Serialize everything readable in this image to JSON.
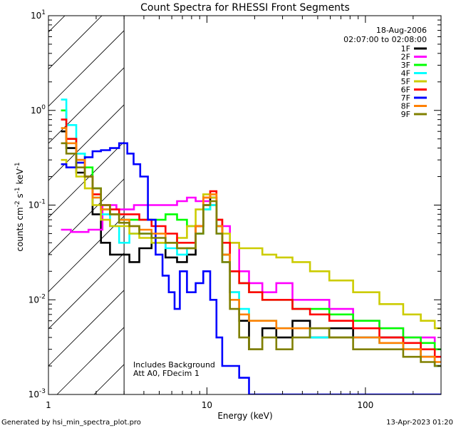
{
  "chart_data": {
    "type": "line",
    "title": "Count Spectra for RHESSI Front Segments",
    "xlabel": "Energy (keV)",
    "ylabel_main": "counts cm",
    "ylabel_exp1": "-2",
    "ylabel_mid1": " s",
    "ylabel_exp2": "-1",
    "ylabel_mid2": " keV",
    "ylabel_exp3": "-1",
    "x_scale": "log",
    "y_scale": "log",
    "xlim": [
      1,
      300
    ],
    "ylim": [
      0.001,
      10
    ],
    "x_ticks": [
      {
        "v": 1,
        "label": "1"
      },
      {
        "v": 10,
        "label": "10"
      },
      {
        "v": 100,
        "label": "100"
      }
    ],
    "y_ticks": [
      {
        "v": 0.001,
        "base": "10",
        "exp": "-3"
      },
      {
        "v": 0.01,
        "base": "10",
        "exp": "-2"
      },
      {
        "v": 0.1,
        "base": "10",
        "exp": "-1"
      },
      {
        "v": 1,
        "base": "10",
        "exp": "0"
      },
      {
        "v": 10,
        "base": "10",
        "exp": "1"
      }
    ],
    "hatched_region": {
      "x0": 1,
      "x1": 3
    },
    "date": "18-Aug-2006",
    "time_range": "02:07:00 to 02:08:00",
    "annotation_lines": [
      "Includes Background",
      "Att A0, FDecim 1"
    ],
    "footer_left": "Generated by hsi_min_spectra_plot.pro",
    "footer_right": "13-Apr-2023 01:20",
    "series": [
      {
        "name": "1F",
        "color": "#000000",
        "x": [
          1.2,
          1.4,
          1.6,
          1.8,
          2.0,
          2.3,
          2.6,
          3.0,
          3.5,
          4,
          5,
          6,
          7,
          8,
          9,
          10,
          11,
          12,
          13,
          15,
          17,
          20,
          25,
          30,
          40,
          50,
          70,
          100,
          150,
          200,
          250,
          300
        ],
        "y": [
          0.6,
          0.4,
          0.22,
          0.2,
          0.08,
          0.04,
          0.03,
          0.03,
          0.025,
          0.035,
          0.04,
          0.028,
          0.025,
          0.03,
          0.06,
          0.1,
          0.12,
          0.06,
          0.03,
          0.012,
          0.006,
          0.003,
          0.005,
          0.004,
          0.006,
          0.004,
          0.005,
          0.004,
          0.004,
          0.003,
          0.0025,
          0.002
        ]
      },
      {
        "name": "2F",
        "color": "#ff00ff",
        "x": [
          1.2,
          1.6,
          2.0,
          2.4,
          3.0,
          4,
          5,
          6,
          7,
          8,
          9,
          10,
          11,
          12,
          13,
          15,
          17,
          20,
          25,
          30,
          40,
          50,
          70,
          100,
          150,
          200,
          250,
          300
        ],
        "y": [
          0.055,
          0.052,
          0.055,
          0.1,
          0.09,
          0.1,
          0.1,
          0.1,
          0.11,
          0.12,
          0.11,
          0.11,
          0.1,
          0.07,
          0.06,
          0.04,
          0.02,
          0.015,
          0.012,
          0.015,
          0.01,
          0.01,
          0.008,
          0.006,
          0.005,
          0.004,
          0.004,
          0.003
        ]
      },
      {
        "name": "3F",
        "color": "#00ff00",
        "x": [
          1.2,
          1.4,
          1.6,
          1.8,
          2.0,
          2.3,
          2.6,
          3.0,
          3.5,
          4,
          5,
          6,
          7,
          8,
          9,
          10,
          11,
          12,
          13,
          15,
          17,
          20,
          25,
          30,
          40,
          50,
          70,
          100,
          150,
          200,
          250,
          300
        ],
        "y": [
          1.0,
          0.5,
          0.35,
          0.25,
          0.15,
          0.09,
          0.08,
          0.07,
          0.07,
          0.07,
          0.07,
          0.08,
          0.07,
          0.06,
          0.05,
          0.09,
          0.1,
          0.06,
          0.03,
          0.02,
          0.015,
          0.012,
          0.01,
          0.01,
          0.008,
          0.008,
          0.007,
          0.006,
          0.005,
          0.004,
          0.0035,
          0.003
        ]
      },
      {
        "name": "4F",
        "color": "#00ffff",
        "x": [
          1.2,
          1.4,
          1.6,
          1.8,
          2.0,
          2.3,
          2.6,
          3.0,
          3.5,
          4,
          5,
          6,
          7,
          8,
          9,
          10,
          11,
          12,
          13,
          15,
          17,
          20,
          25,
          30,
          40,
          50,
          70,
          100,
          150,
          200,
          250,
          300
        ],
        "y": [
          1.3,
          0.7,
          0.35,
          0.2,
          0.12,
          0.08,
          0.06,
          0.04,
          0.05,
          0.05,
          0.04,
          0.035,
          0.03,
          0.035,
          0.05,
          0.09,
          0.1,
          0.05,
          0.025,
          0.012,
          0.008,
          0.006,
          0.006,
          0.005,
          0.005,
          0.004,
          0.004,
          0.004,
          0.0035,
          0.003,
          0.0025,
          0.002
        ]
      },
      {
        "name": "5F",
        "color": "#cccc00",
        "x": [
          1.2,
          1.4,
          1.6,
          1.8,
          2.0,
          2.3,
          2.6,
          3.0,
          3.5,
          4,
          5,
          6,
          7,
          8,
          9,
          10,
          11,
          12,
          13,
          15,
          17,
          20,
          25,
          30,
          40,
          50,
          70,
          100,
          150,
          200,
          250,
          300
        ],
        "y": [
          0.3,
          0.25,
          0.2,
          0.15,
          0.1,
          0.07,
          0.06,
          0.06,
          0.05,
          0.045,
          0.04,
          0.04,
          0.045,
          0.06,
          0.09,
          0.13,
          0.12,
          0.07,
          0.05,
          0.04,
          0.035,
          0.035,
          0.03,
          0.028,
          0.025,
          0.02,
          0.016,
          0.012,
          0.009,
          0.007,
          0.006,
          0.005
        ]
      },
      {
        "name": "6F",
        "color": "#ff0000",
        "x": [
          1.2,
          1.4,
          1.6,
          1.8,
          2.0,
          2.3,
          2.6,
          3.0,
          3.5,
          4,
          5,
          6,
          7,
          8,
          9,
          10,
          11,
          12,
          13,
          15,
          17,
          20,
          25,
          30,
          40,
          50,
          70,
          100,
          150,
          200,
          250,
          300
        ],
        "y": [
          0.8,
          0.5,
          0.3,
          0.2,
          0.13,
          0.1,
          0.09,
          0.08,
          0.08,
          0.07,
          0.06,
          0.05,
          0.04,
          0.04,
          0.06,
          0.12,
          0.14,
          0.07,
          0.04,
          0.02,
          0.015,
          0.012,
          0.01,
          0.01,
          0.008,
          0.007,
          0.006,
          0.005,
          0.004,
          0.0035,
          0.003,
          0.0025
        ]
      },
      {
        "name": "7F",
        "color": "#0000ff",
        "x": [
          1.2,
          1.4,
          1.6,
          1.8,
          2.0,
          2.3,
          2.6,
          3.0,
          3.3,
          3.6,
          4,
          4.5,
          5,
          5.5,
          6,
          6.5,
          7,
          8,
          9,
          10,
          11,
          12,
          13,
          15,
          17,
          20
        ],
        "y": [
          0.27,
          0.25,
          0.28,
          0.32,
          0.37,
          0.38,
          0.4,
          0.45,
          0.35,
          0.27,
          0.2,
          0.07,
          0.03,
          0.018,
          0.012,
          0.008,
          0.02,
          0.012,
          0.015,
          0.02,
          0.01,
          0.004,
          0.002,
          0.002,
          0.0015,
          0.001
        ]
      },
      {
        "name": "8F",
        "color": "#ff8000",
        "x": [
          1.2,
          1.4,
          1.6,
          1.8,
          2.0,
          2.3,
          2.6,
          3.0,
          3.5,
          4,
          5,
          6,
          7,
          8,
          9,
          10,
          11,
          12,
          13,
          15,
          17,
          20,
          25,
          30,
          40,
          50,
          70,
          100,
          150,
          200,
          250,
          300
        ],
        "y": [
          0.65,
          0.45,
          0.3,
          0.2,
          0.12,
          0.09,
          0.08,
          0.07,
          0.06,
          0.055,
          0.05,
          0.04,
          0.035,
          0.035,
          0.06,
          0.12,
          0.13,
          0.06,
          0.03,
          0.01,
          0.007,
          0.006,
          0.006,
          0.005,
          0.005,
          0.005,
          0.004,
          0.004,
          0.0035,
          0.003,
          0.0025,
          0.0022
        ]
      },
      {
        "name": "9F",
        "color": "#808000",
        "x": [
          1.2,
          1.4,
          1.6,
          1.8,
          2.0,
          2.3,
          2.6,
          3.0,
          3.5,
          4,
          5,
          6,
          7,
          8,
          9,
          10,
          11,
          12,
          13,
          15,
          17,
          20,
          25,
          30,
          40,
          50,
          70,
          100,
          150,
          200,
          250,
          300
        ],
        "y": [
          0.45,
          0.35,
          0.25,
          0.2,
          0.15,
          0.1,
          0.08,
          0.065,
          0.06,
          0.05,
          0.045,
          0.04,
          0.035,
          0.035,
          0.05,
          0.1,
          0.11,
          0.05,
          0.025,
          0.008,
          0.004,
          0.003,
          0.004,
          0.003,
          0.004,
          0.005,
          0.004,
          0.003,
          0.003,
          0.0025,
          0.0022,
          0.002
        ]
      }
    ]
  }
}
